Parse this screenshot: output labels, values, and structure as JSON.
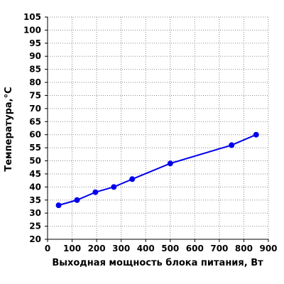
{
  "chart_data": {
    "type": "line",
    "title": "",
    "xlabel": "Выходная мощность блока питания, Вт",
    "ylabel": "Температура,°C",
    "xlim": [
      0,
      900
    ],
    "ylim": [
      20,
      105
    ],
    "x_ticks": [
      0,
      100,
      200,
      300,
      400,
      500,
      600,
      700,
      800,
      900
    ],
    "y_ticks": [
      20,
      25,
      30,
      35,
      40,
      45,
      50,
      55,
      60,
      65,
      70,
      75,
      80,
      85,
      90,
      95,
      100,
      105
    ],
    "grid": true,
    "grid_style": "dotted",
    "legend": "none",
    "series": [
      {
        "x": [
          45,
          120,
          195,
          270,
          345,
          500,
          750,
          850
        ],
        "y": [
          33,
          35,
          38,
          40,
          43,
          49,
          56,
          60
        ],
        "color": "#0000ee",
        "marker": "circle"
      }
    ]
  }
}
